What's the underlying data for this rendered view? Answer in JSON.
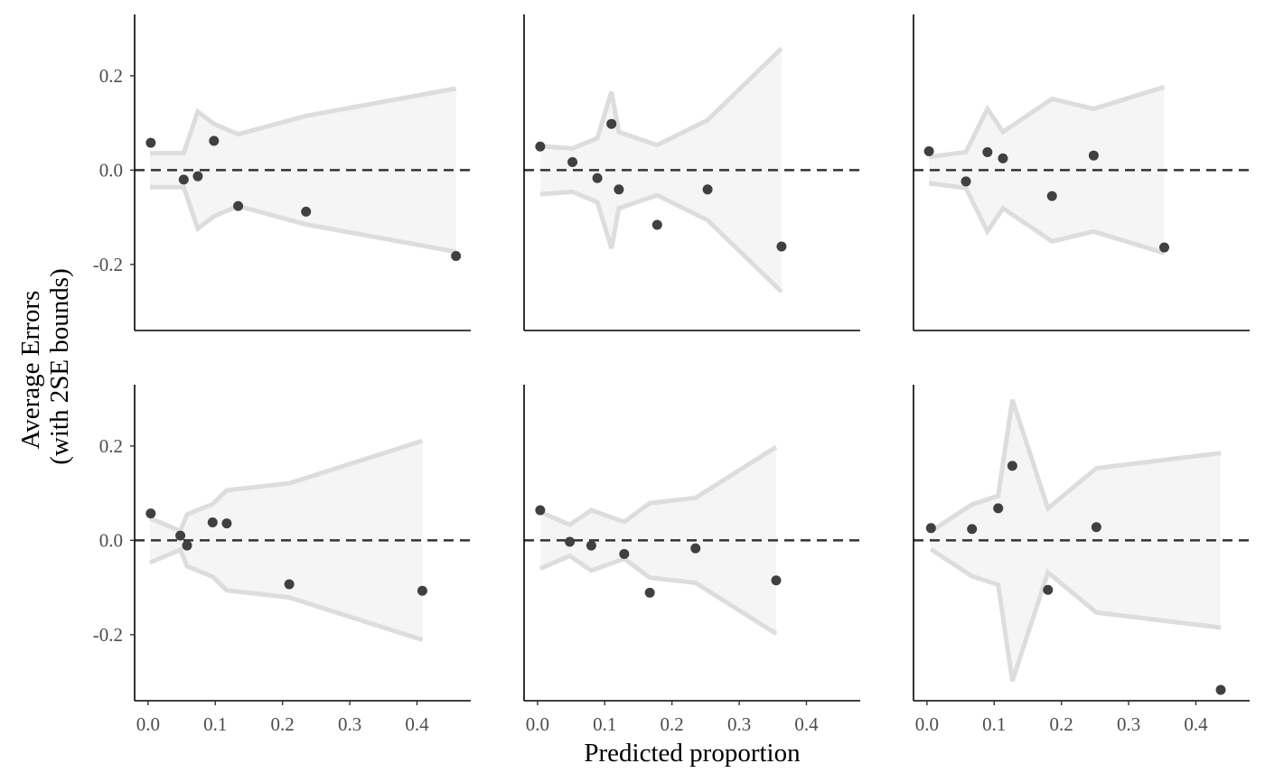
{
  "chart_data": {
    "type": "scatter",
    "layout": "2x3 facet grid",
    "xlabel": "Predicted proportion",
    "ylabel": [
      "Average Errors",
      "(with 2SE bounds)"
    ],
    "xlim": [
      -0.02,
      0.48
    ],
    "ylim": [
      -0.34,
      0.33
    ],
    "x_ticks": [
      0.0,
      0.1,
      0.2,
      0.3,
      0.4
    ],
    "x_tick_labels": [
      "0.0",
      "0.1",
      "0.2",
      "0.3",
      "0.4"
    ],
    "y_ticks": [
      -0.2,
      0.0,
      0.2
    ],
    "y_tick_labels": [
      "-0.2",
      "0.0",
      "0.2"
    ],
    "reference_line": {
      "y": 0.0,
      "style": "dashed",
      "color": "#333333"
    },
    "colors": {
      "points": "#404040",
      "band_fill": "#f5f5f5",
      "band_line": "#dddddd",
      "axis": "#000000"
    },
    "grid": false,
    "panels": [
      {
        "points": [
          [
            0.004,
            0.058
          ],
          [
            0.053,
            -0.02
          ],
          [
            0.074,
            -0.013
          ],
          [
            0.098,
            0.062
          ],
          [
            0.134,
            -0.076
          ],
          [
            0.235,
            -0.088
          ],
          [
            0.458,
            -0.182
          ]
        ],
        "band_x": [
          0.003,
          0.053,
          0.074,
          0.098,
          0.134,
          0.235,
          0.458
        ],
        "band_se2": [
          0.036,
          0.036,
          0.124,
          0.098,
          0.076,
          0.115,
          0.173
        ]
      },
      {
        "points": [
          [
            0.004,
            0.05
          ],
          [
            0.052,
            0.017
          ],
          [
            0.089,
            -0.017
          ],
          [
            0.11,
            0.098
          ],
          [
            0.121,
            -0.041
          ],
          [
            0.178,
            -0.116
          ],
          [
            0.253,
            -0.041
          ],
          [
            0.363,
            -0.162
          ]
        ],
        "band_x": [
          0.004,
          0.052,
          0.089,
          0.11,
          0.121,
          0.178,
          0.253,
          0.363
        ],
        "band_se2": [
          0.051,
          0.046,
          0.068,
          0.166,
          0.081,
          0.053,
          0.106,
          0.258
        ]
      },
      {
        "points": [
          [
            0.003,
            0.04
          ],
          [
            0.058,
            -0.024
          ],
          [
            0.09,
            0.038
          ],
          [
            0.113,
            0.025
          ],
          [
            0.186,
            -0.055
          ],
          [
            0.248,
            0.031
          ],
          [
            0.353,
            -0.164
          ]
        ],
        "band_x": [
          0.003,
          0.058,
          0.09,
          0.113,
          0.186,
          0.248,
          0.353
        ],
        "band_se2": [
          0.028,
          0.038,
          0.13,
          0.081,
          0.151,
          0.13,
          0.176
        ]
      },
      {
        "points": [
          [
            0.004,
            0.057
          ],
          [
            0.048,
            0.01
          ],
          [
            0.058,
            -0.011
          ],
          [
            0.096,
            0.038
          ],
          [
            0.117,
            0.036
          ],
          [
            0.21,
            -0.093
          ],
          [
            0.408,
            -0.107
          ]
        ],
        "band_x": [
          0.003,
          0.048,
          0.058,
          0.096,
          0.117,
          0.21,
          0.408
        ],
        "band_se2": [
          0.047,
          0.02,
          0.055,
          0.077,
          0.106,
          0.121,
          0.211
        ]
      },
      {
        "points": [
          [
            0.004,
            0.064
          ],
          [
            0.048,
            -0.003
          ],
          [
            0.08,
            -0.011
          ],
          [
            0.129,
            -0.029
          ],
          [
            0.167,
            -0.111
          ],
          [
            0.235,
            -0.017
          ],
          [
            0.355,
            -0.085
          ]
        ],
        "band_x": [
          0.004,
          0.048,
          0.08,
          0.129,
          0.167,
          0.235,
          0.355
        ],
        "band_se2": [
          0.06,
          0.033,
          0.064,
          0.039,
          0.079,
          0.09,
          0.198
        ]
      },
      {
        "points": [
          [
            0.006,
            0.026
          ],
          [
            0.067,
            0.024
          ],
          [
            0.106,
            0.068
          ],
          [
            0.127,
            0.158
          ],
          [
            0.18,
            -0.105
          ],
          [
            0.252,
            0.028
          ],
          [
            0.437,
            -0.317
          ]
        ],
        "band_x": [
          0.006,
          0.067,
          0.106,
          0.127,
          0.18,
          0.252,
          0.437
        ],
        "band_se2": [
          0.019,
          0.076,
          0.094,
          0.298,
          0.068,
          0.153,
          0.185
        ]
      }
    ]
  }
}
